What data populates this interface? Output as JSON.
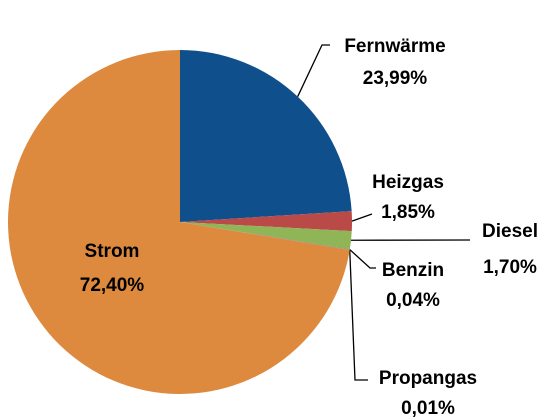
{
  "chart_data": {
    "type": "pie",
    "categories": [
      "Fernwärme",
      "Heizgas",
      "Diesel",
      "Benzin",
      "Propangas",
      "Strom"
    ],
    "values": [
      23.99,
      1.85,
      1.7,
      0.04,
      0.01,
      72.4
    ],
    "value_labels": [
      "23,99%",
      "1,85%",
      "1,70%",
      "0,04%",
      "0,01%",
      "72,40%"
    ],
    "colors": [
      "#0f4f8c",
      "#b94a48",
      "#8fb556",
      "#7f63a2",
      "#4aacc6",
      "#dd8a3f"
    ]
  }
}
